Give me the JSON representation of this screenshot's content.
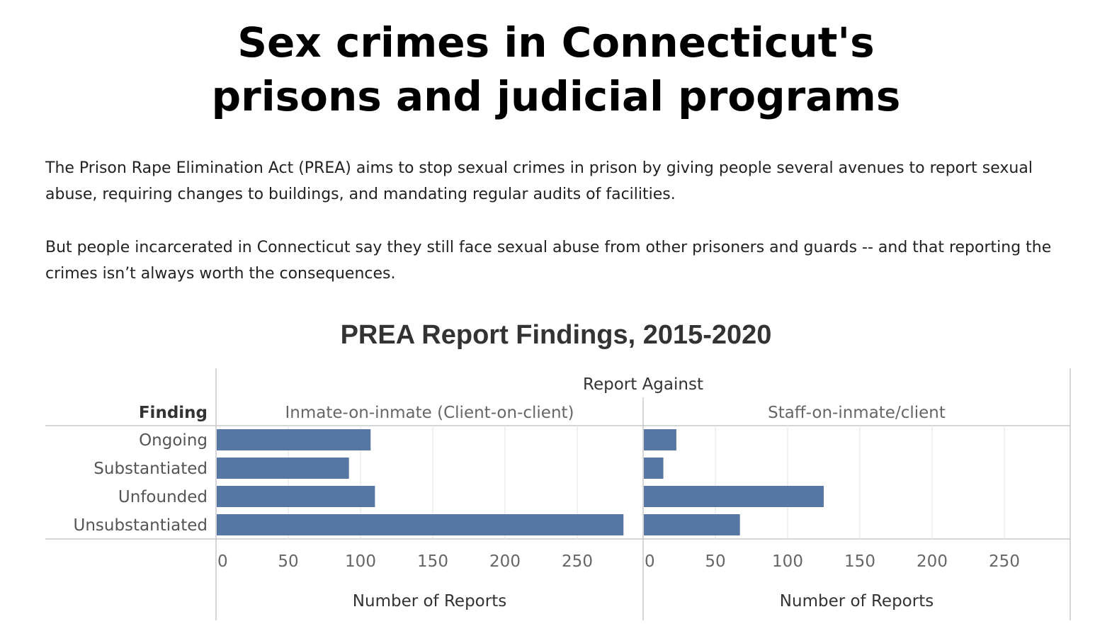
{
  "page": {
    "title_line1": "Sex crimes in Connecticut's",
    "title_line2": "prisons and judicial programs",
    "paragraph1": "The Prison Rape Elimination Act (PREA) aims to stop sexual crimes in prison by giving people several avenues to report sexual abuse, requiring changes to buildings, and mandating regular audits of facilities.",
    "paragraph2": "But people incarcerated in Connecticut say they still face sexual abuse from other prisoners and guards -- and that reporting the crimes isn’t always worth the consequences."
  },
  "chart_data": {
    "type": "bar",
    "orientation": "horizontal",
    "title": "PREA Report Findings, 2015-2020",
    "row_header": "Finding",
    "column_header": "Report Against",
    "categories": [
      "Ongoing",
      "Substantiated",
      "Unfounded",
      "Unsubstantiated"
    ],
    "panels": [
      {
        "name": "Inmate-on-inmate (Client-on-client)",
        "values": [
          107,
          92,
          110,
          282
        ]
      },
      {
        "name": "Staff-on-inmate/client",
        "values": [
          23,
          14,
          125,
          67
        ]
      }
    ],
    "xlabel": "Number of Reports",
    "xticks": [
      0,
      50,
      100,
      150,
      200,
      250
    ],
    "xlim": [
      0,
      295
    ],
    "bar_color": "#5677a4",
    "grid": true
  }
}
